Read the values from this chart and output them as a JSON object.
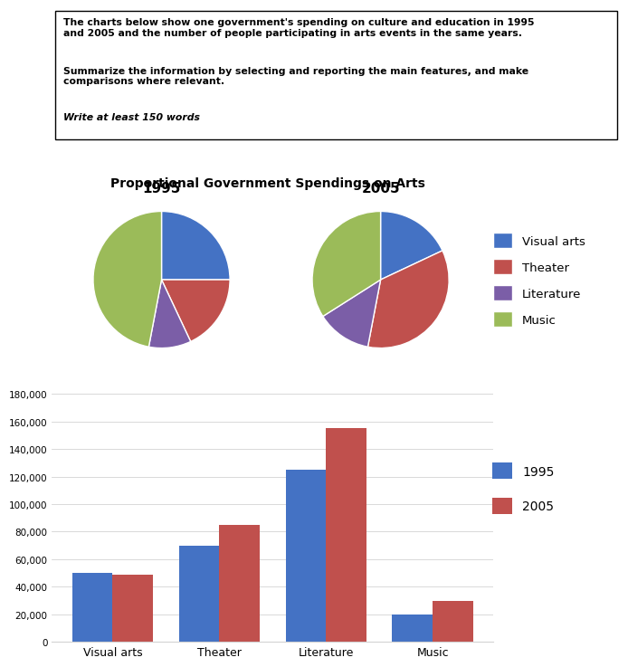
{
  "text_box": {
    "line1": "The charts below show one government's spending on culture and education in 1995",
    "line2": "and 2005 and the number of people participating in arts events in the same years.",
    "line3": "Summarize the information by selecting and reporting the main features, and make",
    "line4": "comparisons where relevant.",
    "line5": "Write at least 150 words"
  },
  "pie_title": "Proportional Government Spendings on Arts",
  "pie_colors": {
    "Visual arts": "#4472C4",
    "Theater": "#C0504D",
    "Literature": "#7B5EA7",
    "Music": "#9BBB59"
  },
  "pie_1995": [
    25,
    18,
    10,
    47
  ],
  "pie_2005": [
    18,
    35,
    13,
    34
  ],
  "pie_labels": [
    "Visual arts",
    "Theater",
    "Literature",
    "Music"
  ],
  "bar_categories": [
    "Visual arts",
    "Theater",
    "Literature",
    "Music"
  ],
  "bar_1995": [
    50000,
    70000,
    125000,
    20000
  ],
  "bar_2005": [
    49000,
    85000,
    155000,
    30000
  ],
  "bar_color_1995": "#4472C4",
  "bar_color_2005": "#C0504D",
  "bar_ylim": [
    0,
    180000
  ],
  "bar_yticks": [
    0,
    20000,
    40000,
    60000,
    80000,
    100000,
    120000,
    140000,
    160000,
    180000
  ]
}
